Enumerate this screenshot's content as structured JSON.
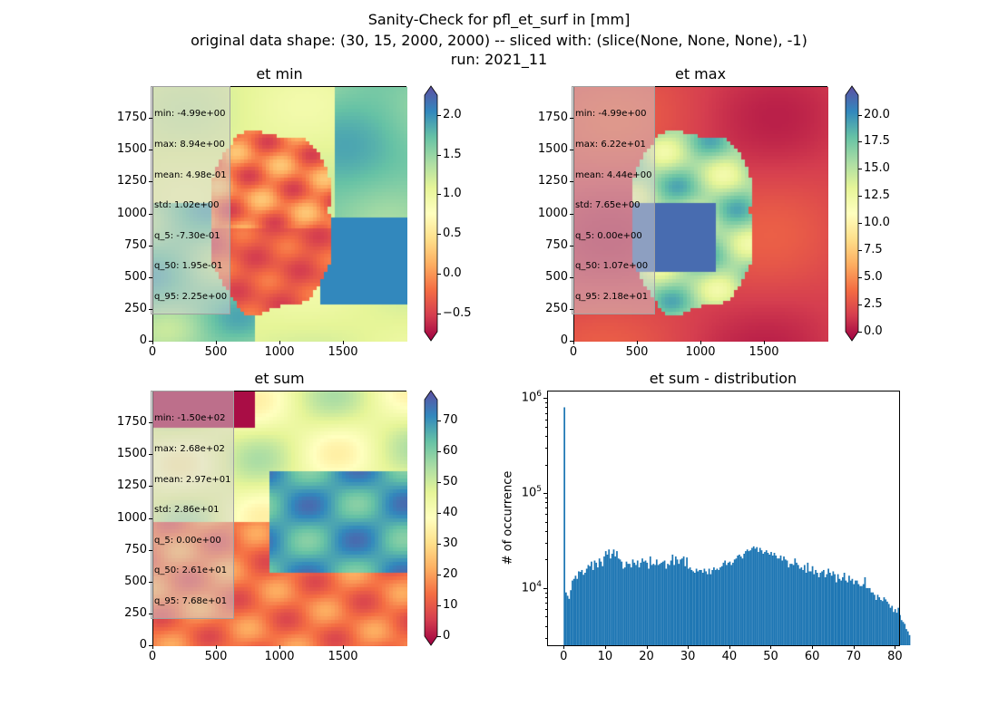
{
  "figure": {
    "title_line1": "Sanity-Check for pfl_et_surf in [mm]",
    "title_line2": "original data shape: (30, 15, 2000, 2000) -- sliced with: (slice(None, None, None), -1)",
    "title_line3": "run: 2021_11"
  },
  "panels": {
    "et_min": {
      "title": "et min",
      "stats": [
        "min: -4.99e+00",
        "max: 8.94e+00",
        "mean: 4.98e-01",
        "std: 1.02e+00",
        "q_5: -7.30e-01",
        "q_50: 1.95e-01",
        "q_95: 2.25e+00"
      ],
      "cbar_ticks": [
        "−0.5",
        "0.0",
        "0.5",
        "1.0",
        "1.5",
        "2.0"
      ],
      "cbar_range": [
        -0.73,
        2.25
      ]
    },
    "et_max": {
      "title": "et max",
      "stats": [
        "min: -4.99e+00",
        "max: 6.22e+01",
        "mean: 4.44e+00",
        "std: 7.65e+00",
        "q_5: 0.00e+00",
        "q_50: 1.07e+00",
        "q_95: 2.18e+01"
      ],
      "cbar_ticks": [
        "0.0",
        "2.5",
        "5.0",
        "7.5",
        "10.0",
        "12.5",
        "15.0",
        "17.5",
        "20.0"
      ],
      "cbar_range": [
        0,
        21.8
      ]
    },
    "et_sum": {
      "title": "et sum",
      "stats": [
        "min: -1.50e+02",
        "max: 2.68e+02",
        "mean: 2.97e+01",
        "std: 2.86e+01",
        "q_5: 0.00e+00",
        "q_50: 2.61e+01",
        "q_95: 7.68e+01"
      ],
      "cbar_ticks": [
        "0",
        "10",
        "20",
        "30",
        "40",
        "50",
        "60",
        "70"
      ],
      "cbar_range": [
        0,
        76.8
      ]
    },
    "map_axes": {
      "x_ticks": [
        "0",
        "500",
        "1000",
        "1500"
      ],
      "y_ticks": [
        "0",
        "250",
        "500",
        "750",
        "1000",
        "1250",
        "1500",
        "1750"
      ]
    },
    "distribution": {
      "title": "et sum - distribution",
      "ylabel": "# of occurrence",
      "x_ticks": [
        "0",
        "10",
        "20",
        "30",
        "40",
        "50",
        "60",
        "70",
        "80"
      ],
      "y_ticks": [
        {
          "base": "10",
          "exp": "4",
          "value": 10000
        },
        {
          "base": "10",
          "exp": "5",
          "value": 100000
        },
        {
          "base": "10",
          "exp": "6",
          "value": 1000000
        }
      ]
    }
  },
  "chart_data": {
    "type": "bar",
    "title": "et sum - distribution",
    "xlabel": "",
    "ylabel": "# of occurrence",
    "y_scale": "log",
    "xlim": [
      -4,
      81
    ],
    "ylim": [
      2500,
      1200000
    ],
    "bin_width": 0.384,
    "x_start": 0,
    "values": [
      800000,
      9000,
      8300,
      7700,
      9500,
      12000,
      12500,
      13500,
      12500,
      15000,
      14800,
      15500,
      13800,
      14500,
      16000,
      17500,
      17000,
      19000,
      15500,
      19500,
      18500,
      16500,
      20500,
      19000,
      17000,
      21500,
      24500,
      22500,
      25500,
      20500,
      23000,
      25500,
      21500,
      24500,
      20500,
      20000,
      19000,
      16000,
      16500,
      19000,
      18000,
      18000,
      16500,
      20000,
      18500,
      17500,
      19500,
      16500,
      18500,
      20500,
      19000,
      19500,
      18500,
      16000,
      21500,
      17500,
      18000,
      17500,
      20000,
      17500,
      18000,
      18500,
      19000,
      19500,
      16000,
      18000,
      17500,
      19500,
      22500,
      17500,
      21500,
      20000,
      18000,
      20000,
      20500,
      21500,
      17000,
      21000,
      16000,
      16500,
      15500,
      15000,
      14500,
      16000,
      15000,
      15500,
      15500,
      14500,
      16000,
      15000,
      14000,
      16000,
      14000,
      15500,
      16500,
      15500,
      16000,
      15500,
      16500,
      17000,
      18500,
      19500,
      17500,
      18500,
      19000,
      17500,
      18500,
      20000,
      20500,
      22000,
      22500,
      21500,
      20500,
      23000,
      24500,
      25500,
      24500,
      25000,
      26500,
      27500,
      26000,
      27000,
      24000,
      26500,
      25000,
      23000,
      24000,
      25000,
      23500,
      22500,
      24000,
      22000,
      23500,
      22000,
      20500,
      20500,
      22000,
      19500,
      21500,
      20000,
      19500,
      16500,
      18000,
      18000,
      17500,
      20500,
      18500,
      17500,
      16000,
      16500,
      15500,
      17500,
      14500,
      18500,
      15000,
      15000,
      17000,
      14000,
      15500,
      14500,
      13000,
      14500,
      15000,
      15500,
      13000,
      14000,
      16000,
      14500,
      13500,
      15000,
      14000,
      11500,
      14000,
      12500,
      12000,
      13000,
      14500,
      12000,
      11500,
      13500,
      12000,
      12500,
      11000,
      12000,
      12000,
      11000,
      10500,
      10500,
      11000,
      13000,
      10000,
      10000,
      10000,
      9000,
      9000,
      8500,
      7500,
      8500,
      8000,
      7500,
      7300,
      8000,
      7600,
      7200,
      6800,
      6200,
      6500,
      5600,
      6000,
      5500,
      6200,
      5200,
      4600,
      4400,
      4200,
      3700,
      3500,
      3200
    ]
  }
}
